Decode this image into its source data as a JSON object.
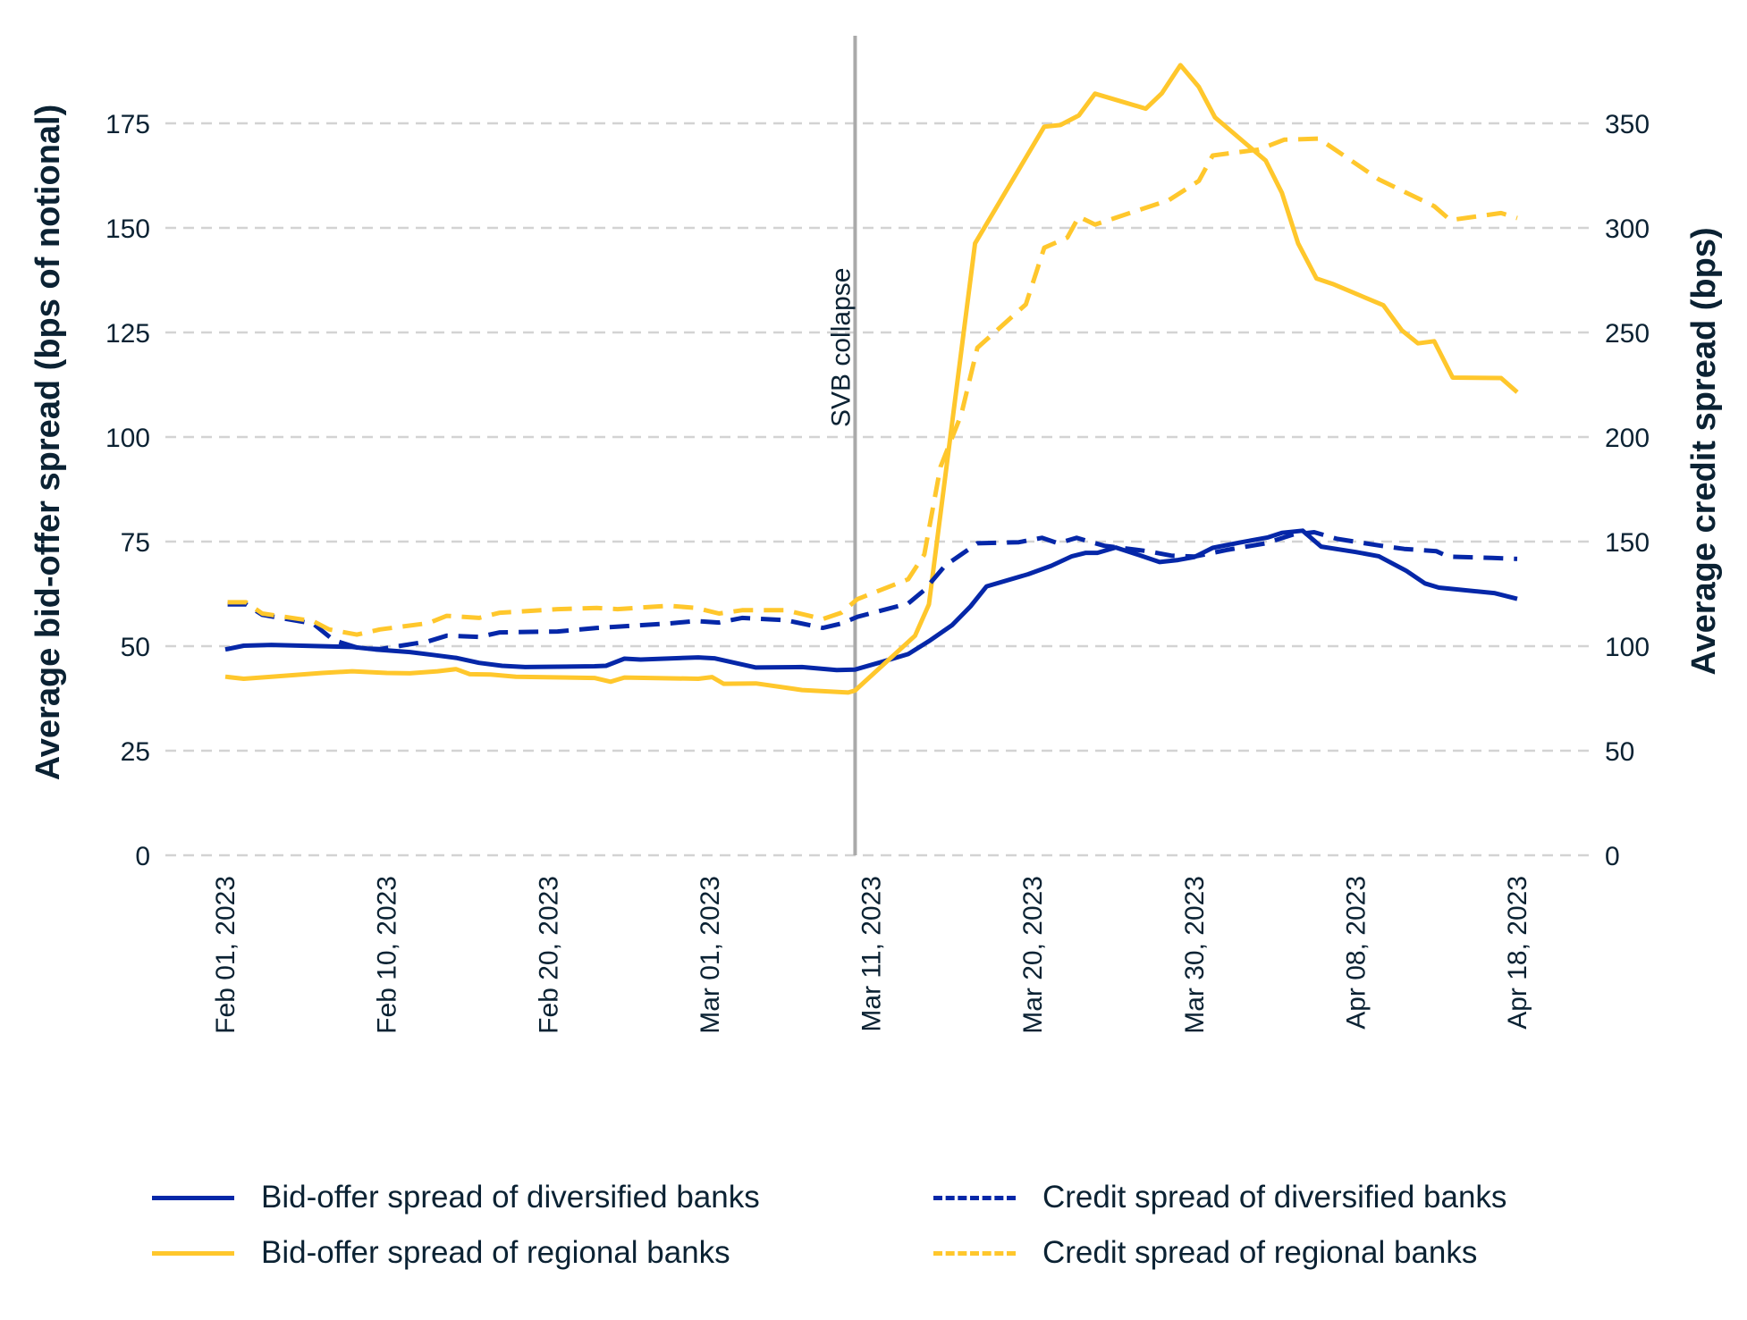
{
  "chart_data": {
    "type": "line",
    "title": "",
    "annotation": {
      "label": "SVB collapse",
      "x_position": 27.3,
      "color": "#aaaaaa"
    },
    "x_axis": {
      "type": "date (evenly spaced ticks; position units)",
      "range": [
        0,
        56
      ],
      "ticks": [
        {
          "pos": 0,
          "label": "Feb 01, 2023"
        },
        {
          "pos": 7,
          "label": "Feb 10, 2023"
        },
        {
          "pos": 14,
          "label": "Feb 20, 2023"
        },
        {
          "pos": 21,
          "label": "Mar 01, 2023"
        },
        {
          "pos": 28,
          "label": "Mar 11, 2023"
        },
        {
          "pos": 35,
          "label": "Mar 20, 2023"
        },
        {
          "pos": 42,
          "label": "Mar 30, 2023"
        },
        {
          "pos": 49,
          "label": "Apr 08, 2023"
        },
        {
          "pos": 56,
          "label": "Apr 18, 2023"
        }
      ]
    },
    "y_left": {
      "label": "Average bid-offer spread (bps of notional)",
      "range": [
        0,
        195
      ],
      "ticks": [
        0,
        25,
        50,
        75,
        100,
        125,
        150,
        175
      ],
      "grid": true
    },
    "y_right": {
      "label": "Average credit spread (bps)",
      "range": [
        0,
        390
      ],
      "ticks": [
        0,
        50,
        100,
        150,
        200,
        250,
        300,
        350
      ]
    },
    "legend_position": "bottom",
    "series": [
      {
        "name": "Bid-offer spread of diversified banks",
        "axis": "left",
        "style": "solid",
        "color": "#0527a8",
        "points": [
          [
            0,
            49.2
          ],
          [
            0.8,
            50.1
          ],
          [
            2,
            50.3
          ],
          [
            5.5,
            49.8
          ],
          [
            6.5,
            49.2
          ],
          [
            8,
            48.6
          ],
          [
            9,
            47.9
          ],
          [
            10,
            47.2
          ],
          [
            11,
            46
          ],
          [
            12,
            45.3
          ],
          [
            13,
            45
          ],
          [
            16,
            45.2
          ],
          [
            16.5,
            45.3
          ],
          [
            17.3,
            47
          ],
          [
            18,
            46.8
          ],
          [
            20.5,
            47.3
          ],
          [
            21.2,
            47.1
          ],
          [
            23,
            44.9
          ],
          [
            25,
            45
          ],
          [
            26.5,
            44.3
          ],
          [
            27.3,
            44.4
          ],
          [
            28.5,
            46.3
          ],
          [
            29.6,
            48.1
          ],
          [
            30.5,
            51.2
          ],
          [
            31.5,
            55
          ],
          [
            32.3,
            59.5
          ],
          [
            33,
            64.3
          ],
          [
            34.8,
            67.2
          ],
          [
            35.8,
            69.2
          ],
          [
            36.7,
            71.5
          ],
          [
            37.3,
            72.3
          ],
          [
            37.8,
            72.3
          ],
          [
            38.6,
            73.6
          ],
          [
            39.6,
            71.8
          ],
          [
            40.5,
            70.1
          ],
          [
            41.3,
            70.6
          ],
          [
            42,
            71.3
          ],
          [
            42.8,
            73.5
          ],
          [
            44,
            74.8
          ],
          [
            45.2,
            76
          ],
          [
            45.8,
            77.1
          ],
          [
            46.7,
            77.6
          ],
          [
            47.5,
            73.8
          ],
          [
            49,
            72.5
          ],
          [
            50,
            71.5
          ],
          [
            51.2,
            68
          ],
          [
            52,
            65
          ],
          [
            52.6,
            64
          ],
          [
            55,
            62.7
          ],
          [
            56,
            61.3
          ]
        ]
      },
      {
        "name": "Bid-offer spread of regional banks",
        "axis": "left",
        "style": "solid",
        "color": "#ffc72c",
        "points": [
          [
            0,
            42.7
          ],
          [
            0.8,
            42.2
          ],
          [
            2,
            42.7
          ],
          [
            4.2,
            43.6
          ],
          [
            5.5,
            44
          ],
          [
            7,
            43.6
          ],
          [
            8,
            43.5
          ],
          [
            9.2,
            44
          ],
          [
            10,
            44.5
          ],
          [
            10.6,
            43.3
          ],
          [
            11.5,
            43.2
          ],
          [
            12.6,
            42.7
          ],
          [
            16,
            42.4
          ],
          [
            16.7,
            41.5
          ],
          [
            17.3,
            42.5
          ],
          [
            20.5,
            42.2
          ],
          [
            21.1,
            42.6
          ],
          [
            21.6,
            41
          ],
          [
            23,
            41.1
          ],
          [
            25,
            39.5
          ],
          [
            27,
            38.9
          ],
          [
            27.3,
            39.4
          ],
          [
            29.9,
            52.5
          ],
          [
            30.5,
            60
          ],
          [
            32.5,
            146.3
          ],
          [
            35.5,
            174.2
          ],
          [
            36.2,
            174.6
          ],
          [
            37,
            176.9
          ],
          [
            37.7,
            182.1
          ],
          [
            39.9,
            178.5
          ],
          [
            40.6,
            182.2
          ],
          [
            41.4,
            188.9
          ],
          [
            42.2,
            183.7
          ],
          [
            42.9,
            176.4
          ],
          [
            45.1,
            166.1
          ],
          [
            45.8,
            158.4
          ],
          [
            46.5,
            146.3
          ],
          [
            47.3,
            137.9
          ],
          [
            48,
            136.6
          ],
          [
            50.2,
            131.5
          ],
          [
            51,
            125.5
          ],
          [
            51.7,
            122.4
          ],
          [
            52.4,
            122.9
          ],
          [
            53.2,
            114.2
          ],
          [
            55.3,
            114.1
          ],
          [
            56,
            110.7
          ]
        ]
      },
      {
        "name": "Credit spread of diversified banks",
        "axis": "right",
        "style": "dashed",
        "color": "#0527a8",
        "points": [
          [
            0.1,
            120
          ],
          [
            0.9,
            120
          ],
          [
            1.6,
            115
          ],
          [
            3.8,
            110.8
          ],
          [
            4.7,
            102.8
          ],
          [
            5.8,
            99
          ],
          [
            6.7,
            98.6
          ],
          [
            8.8,
            102.3
          ],
          [
            9.6,
            105
          ],
          [
            11,
            104.4
          ],
          [
            11.9,
            106.6
          ],
          [
            14.4,
            107
          ],
          [
            16.1,
            108.7
          ],
          [
            19.2,
            110.8
          ],
          [
            20.4,
            112
          ],
          [
            21.4,
            111.3
          ],
          [
            22.4,
            113.5
          ],
          [
            24.3,
            112.4
          ],
          [
            25.9,
            108.7
          ],
          [
            26.7,
            110.8
          ],
          [
            27.4,
            114
          ],
          [
            29.6,
            120.4
          ],
          [
            30.3,
            126.8
          ],
          [
            31.2,
            138.5
          ],
          [
            32.6,
            149.2
          ],
          [
            34.4,
            149.7
          ],
          [
            35.4,
            151.8
          ],
          [
            36.1,
            149.2
          ],
          [
            36.9,
            151.8
          ],
          [
            38.1,
            148
          ],
          [
            40,
            145.4
          ],
          [
            41,
            143.3
          ],
          [
            42,
            142.8
          ],
          [
            43.4,
            146
          ],
          [
            45.1,
            149.2
          ],
          [
            46.3,
            153.4
          ],
          [
            47.2,
            154.5
          ],
          [
            48.2,
            151.3
          ],
          [
            50.1,
            148
          ],
          [
            51.1,
            146.5
          ],
          [
            52.5,
            145.4
          ],
          [
            53,
            142.8
          ],
          [
            54.9,
            142.2
          ],
          [
            56,
            141.7
          ]
        ]
      },
      {
        "name": "Credit spread of regional banks",
        "axis": "right",
        "style": "dashed",
        "color": "#ffc72c",
        "points": [
          [
            0.1,
            121
          ],
          [
            0.9,
            121
          ],
          [
            1.6,
            115.6
          ],
          [
            3.8,
            112
          ],
          [
            4.5,
            108
          ],
          [
            5.7,
            105.5
          ],
          [
            6.7,
            108
          ],
          [
            8.8,
            111
          ],
          [
            9.6,
            114.5
          ],
          [
            11,
            113.5
          ],
          [
            11.9,
            116
          ],
          [
            14.4,
            117.7
          ],
          [
            16.1,
            118.3
          ],
          [
            17,
            117.7
          ],
          [
            19.2,
            119.3
          ],
          [
            20.4,
            118.3
          ],
          [
            21.4,
            115.6
          ],
          [
            22.4,
            117.2
          ],
          [
            24.3,
            117.2
          ],
          [
            25.9,
            113
          ],
          [
            26.7,
            116
          ],
          [
            27.4,
            122.5
          ],
          [
            29.6,
            132
          ],
          [
            30.3,
            143.8
          ],
          [
            31,
            185.7
          ],
          [
            31.9,
            210.7
          ],
          [
            32.6,
            242.7
          ],
          [
            34.7,
            263.4
          ],
          [
            35.5,
            290.5
          ],
          [
            36.5,
            295.4
          ],
          [
            37,
            305.4
          ],
          [
            37.7,
            301.6
          ],
          [
            40.9,
            313.3
          ],
          [
            42.2,
            322.5
          ],
          [
            42.8,
            334.6
          ],
          [
            44.8,
            337.5
          ],
          [
            45.9,
            342.2
          ],
          [
            47.4,
            342.7
          ],
          [
            50,
            323.2
          ],
          [
            52.4,
            310.4
          ],
          [
            53.1,
            303.7
          ],
          [
            55.3,
            307.1
          ],
          [
            56,
            304.7
          ]
        ]
      }
    ]
  }
}
